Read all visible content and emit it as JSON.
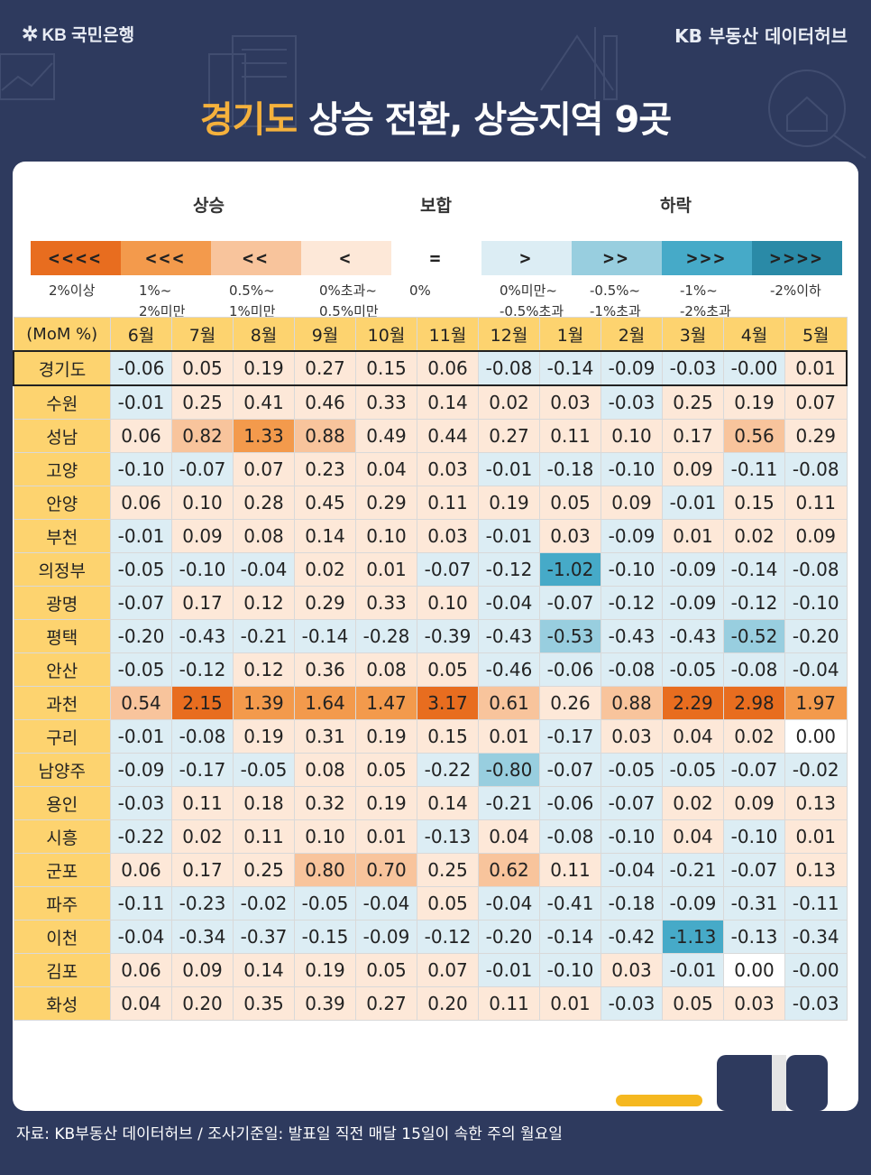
{
  "header": {
    "logo_text": "KB 국민은행",
    "brand": "KB 부동산 데이터허브",
    "title_highlight": "경기도",
    "title_rest": " 상승 전환, 상승지역 9곳"
  },
  "colors": {
    "up4": "#e86d1f",
    "up3": "#f39a4c",
    "up2": "#f8c49c",
    "up1": "#fde8d8",
    "down1": "#dcedf4",
    "down2": "#98cedf",
    "down3": "#46aac8",
    "down4": "#2a8aa7",
    "neutral": "#ffffff"
  },
  "legend": {
    "up_title": "상승",
    "flat_title": "보합",
    "down_title": "하락",
    "boxes": [
      {
        "symbol": "<<<<",
        "color_key": "up4",
        "label": "2%이상",
        "label2": ""
      },
      {
        "symbol": "<<<",
        "color_key": "up3",
        "label": "1%~",
        "label2": "2%미만"
      },
      {
        "symbol": "<<",
        "color_key": "up2",
        "label": "0.5%~",
        "label2": "1%미만"
      },
      {
        "symbol": "<",
        "color_key": "up1",
        "label": "0%초과~",
        "label2": "0.5%미만"
      },
      {
        "symbol": "=",
        "color_key": "neutral",
        "label": "0%",
        "label2": ""
      },
      {
        "symbol": ">",
        "color_key": "down1",
        "label": "0%미만~",
        "label2": "-0.5%초과"
      },
      {
        "symbol": ">>",
        "color_key": "down2",
        "label": "-0.5%~",
        "label2": "-1%초과"
      },
      {
        "symbol": ">>>",
        "color_key": "down3",
        "label": "-1%~",
        "label2": "-2%초과"
      },
      {
        "symbol": ">>>>",
        "color_key": "down4",
        "label": "-2%이하",
        "label2": ""
      }
    ]
  },
  "table": {
    "corner": "(MoM %)",
    "months": [
      "6월",
      "7월",
      "8월",
      "9월",
      "10월",
      "11월",
      "12월",
      "1월",
      "2월",
      "3월",
      "4월",
      "5월"
    ],
    "rows": [
      {
        "region": "경기도",
        "values": [
          "-0.06",
          "0.05",
          "0.19",
          "0.27",
          "0.15",
          "0.06",
          "-0.08",
          "-0.14",
          "-0.09",
          "-0.03",
          "-0.00",
          "0.01"
        ]
      },
      {
        "region": "수원",
        "values": [
          "-0.01",
          "0.25",
          "0.41",
          "0.46",
          "0.33",
          "0.14",
          "0.02",
          "0.03",
          "-0.03",
          "0.25",
          "0.19",
          "0.07"
        ]
      },
      {
        "region": "성남",
        "values": [
          "0.06",
          "0.82",
          "1.33",
          "0.88",
          "0.49",
          "0.44",
          "0.27",
          "0.11",
          "0.10",
          "0.17",
          "0.56",
          "0.29"
        ]
      },
      {
        "region": "고양",
        "values": [
          "-0.10",
          "-0.07",
          "0.07",
          "0.23",
          "0.04",
          "0.03",
          "-0.01",
          "-0.18",
          "-0.10",
          "0.09",
          "-0.11",
          "-0.08"
        ]
      },
      {
        "region": "안양",
        "values": [
          "0.06",
          "0.10",
          "0.28",
          "0.45",
          "0.29",
          "0.11",
          "0.19",
          "0.05",
          "0.09",
          "-0.01",
          "0.15",
          "0.11"
        ]
      },
      {
        "region": "부천",
        "values": [
          "-0.01",
          "0.09",
          "0.08",
          "0.14",
          "0.10",
          "0.03",
          "-0.01",
          "0.03",
          "-0.09",
          "0.01",
          "0.02",
          "0.09"
        ]
      },
      {
        "region": "의정부",
        "values": [
          "-0.05",
          "-0.10",
          "-0.04",
          "0.02",
          "0.01",
          "-0.07",
          "-0.12",
          "-1.02",
          "-0.10",
          "-0.09",
          "-0.14",
          "-0.08"
        ]
      },
      {
        "region": "광명",
        "values": [
          "-0.07",
          "0.17",
          "0.12",
          "0.29",
          "0.33",
          "0.10",
          "-0.04",
          "-0.07",
          "-0.12",
          "-0.09",
          "-0.12",
          "-0.10"
        ]
      },
      {
        "region": "평택",
        "values": [
          "-0.20",
          "-0.43",
          "-0.21",
          "-0.14",
          "-0.28",
          "-0.39",
          "-0.43",
          "-0.53",
          "-0.43",
          "-0.43",
          "-0.52",
          "-0.20"
        ]
      },
      {
        "region": "안산",
        "values": [
          "-0.05",
          "-0.12",
          "0.12",
          "0.36",
          "0.08",
          "0.05",
          "-0.46",
          "-0.06",
          "-0.08",
          "-0.05",
          "-0.08",
          "-0.04"
        ]
      },
      {
        "region": "과천",
        "values": [
          "0.54",
          "2.15",
          "1.39",
          "1.64",
          "1.47",
          "3.17",
          "0.61",
          "0.26",
          "0.88",
          "2.29",
          "2.98",
          "1.97"
        ]
      },
      {
        "region": "구리",
        "values": [
          "-0.01",
          "-0.08",
          "0.19",
          "0.31",
          "0.19",
          "0.15",
          "0.01",
          "-0.17",
          "0.03",
          "0.04",
          "0.02",
          "0.00"
        ]
      },
      {
        "region": "남양주",
        "values": [
          "-0.09",
          "-0.17",
          "-0.05",
          "0.08",
          "0.05",
          "-0.22",
          "-0.80",
          "-0.07",
          "-0.05",
          "-0.05",
          "-0.07",
          "-0.02"
        ]
      },
      {
        "region": "용인",
        "values": [
          "-0.03",
          "0.11",
          "0.18",
          "0.32",
          "0.19",
          "0.14",
          "-0.21",
          "-0.06",
          "-0.07",
          "0.02",
          "0.09",
          "0.13"
        ]
      },
      {
        "region": "시흥",
        "values": [
          "-0.22",
          "0.02",
          "0.11",
          "0.10",
          "0.01",
          "-0.13",
          "0.04",
          "-0.08",
          "-0.10",
          "0.04",
          "-0.10",
          "0.01"
        ]
      },
      {
        "region": "군포",
        "values": [
          "0.06",
          "0.17",
          "0.25",
          "0.80",
          "0.70",
          "0.25",
          "0.62",
          "0.11",
          "-0.04",
          "-0.21",
          "-0.07",
          "0.13"
        ]
      },
      {
        "region": "파주",
        "values": [
          "-0.11",
          "-0.23",
          "-0.02",
          "-0.05",
          "-0.04",
          "0.05",
          "-0.04",
          "-0.41",
          "-0.18",
          "-0.09",
          "-0.31",
          "-0.11"
        ]
      },
      {
        "region": "이천",
        "values": [
          "-0.04",
          "-0.34",
          "-0.37",
          "-0.15",
          "-0.09",
          "-0.12",
          "-0.20",
          "-0.14",
          "-0.42",
          "-1.13",
          "-0.13",
          "-0.34"
        ]
      },
      {
        "region": "김포",
        "values": [
          "0.06",
          "0.09",
          "0.14",
          "0.19",
          "0.05",
          "0.07",
          "-0.01",
          "-0.10",
          "0.03",
          "-0.01",
          "0.00",
          "-0.00"
        ]
      },
      {
        "region": "화성",
        "values": [
          "0.04",
          "0.20",
          "0.35",
          "0.39",
          "0.27",
          "0.20",
          "0.11",
          "0.01",
          "-0.03",
          "0.05",
          "0.03",
          "-0.03"
        ]
      }
    ]
  },
  "footer": "자료: KB부동산 데이터허브 / 조사기준일: 발표일 직전 매달 15일이 속한 주의 월요일"
}
